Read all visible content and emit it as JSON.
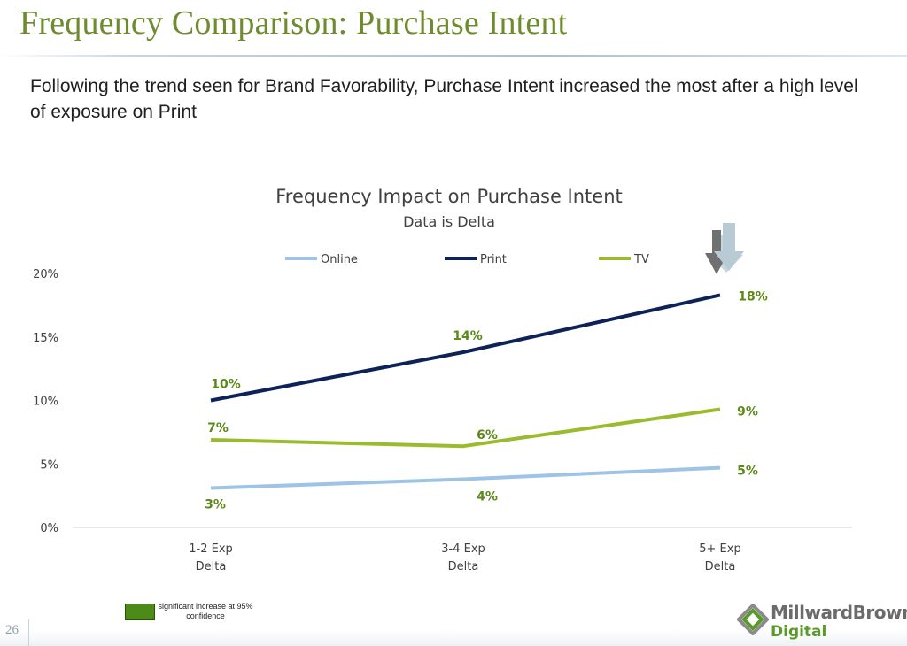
{
  "slide": {
    "title": "Frequency Comparison: Purchase Intent",
    "subtitle": "Following the trend seen for Brand Favorability, Purchase Intent increased the most after a high level of exposure on Print",
    "page_number": "26",
    "significance_note": "significant increase at 95% confidence",
    "logo_line1": "MillwardBrown",
    "logo_line2": "Digital"
  },
  "colors": {
    "title": "#6f8b2f",
    "online": "#9dc3e6",
    "print": "#0d2357",
    "tv": "#9bbb2e",
    "data_label": "#5b8a16",
    "significance": "#4e8a18"
  },
  "chart_data": {
    "type": "line",
    "title": "Frequency Impact on Purchase Intent",
    "subtitle": "Data is Delta",
    "categories": [
      [
        "1-2 Exp",
        "Delta"
      ],
      [
        "3-4 Exp",
        "Delta"
      ],
      [
        "5+ Exp",
        "Delta"
      ]
    ],
    "yticks": [
      "0%",
      "5%",
      "10%",
      "15%",
      "20%"
    ],
    "ylim": [
      0,
      20
    ],
    "legend_position": "top",
    "grid": false,
    "series": [
      {
        "name": "Online",
        "color": "#9dc3e6",
        "values": [
          3.1,
          3.8,
          4.7
        ],
        "labels": [
          "3%",
          "4%",
          "5%"
        ]
      },
      {
        "name": "Print",
        "color": "#0d2357",
        "values": [
          10.0,
          13.8,
          18.3
        ],
        "labels": [
          "10%",
          "14%",
          "18%"
        ]
      },
      {
        "name": "TV",
        "color": "#9bbb2e",
        "values": [
          6.9,
          6.4,
          9.3
        ],
        "labels": [
          "7%",
          "6%",
          "9%"
        ]
      }
    ]
  }
}
